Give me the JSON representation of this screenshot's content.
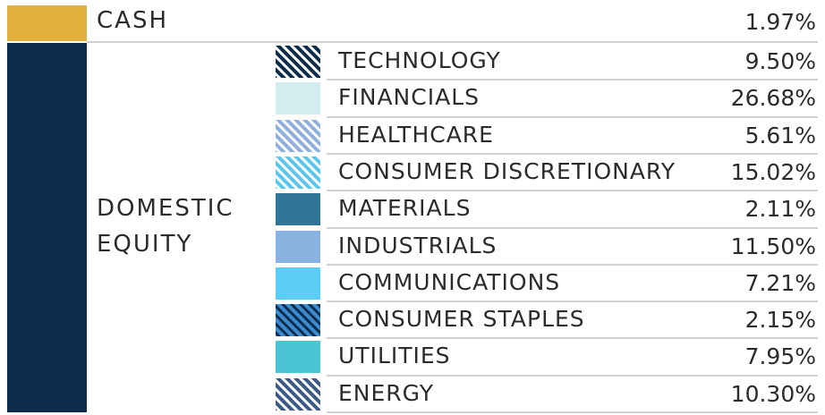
{
  "chart_data": {
    "type": "table",
    "categories": [
      {
        "name": "CASH",
        "value": "1.97%",
        "color": "#E0AF3C"
      },
      {
        "name_lines": [
          "DOMESTIC",
          "EQUITY"
        ],
        "color": "#0B2D4B",
        "sectors": [
          {
            "name": "TECHNOLOGY",
            "value": "9.50%",
            "swatch": {
              "pattern": "stripes",
              "fg": "#0B2D4B",
              "bg": "#ffffff"
            }
          },
          {
            "name": "FINANCIALS",
            "value": "26.68%",
            "swatch": {
              "pattern": "solid",
              "fg": "#D3ECEF"
            }
          },
          {
            "name": "HEALTHCARE",
            "value": "5.61%",
            "swatch": {
              "pattern": "stripes",
              "fg": "#8FB0DD",
              "bg": "#ffffff"
            }
          },
          {
            "name": "CONSUMER DISCRETIONARY",
            "value": "15.02%",
            "swatch": {
              "pattern": "stripes",
              "fg": "#5BC6EE",
              "bg": "#ffffff"
            }
          },
          {
            "name": "MATERIALS",
            "value": "2.11%",
            "swatch": {
              "pattern": "solid",
              "fg": "#2E7596"
            }
          },
          {
            "name": "INDUSTRIALS",
            "value": "11.50%",
            "swatch": {
              "pattern": "solid",
              "fg": "#8AB2E0"
            }
          },
          {
            "name": "COMMUNICATIONS",
            "value": "7.21%",
            "swatch": {
              "pattern": "solid",
              "fg": "#5CCDF7"
            }
          },
          {
            "name": "CONSUMER STAPLES",
            "value": "2.15%",
            "swatch": {
              "pattern": "stripes",
              "fg": "#3C8BD0",
              "bg": "#0B2D4B"
            }
          },
          {
            "name": "UTILITIES",
            "value": "7.95%",
            "swatch": {
              "pattern": "solid",
              "fg": "#4BC4D3"
            }
          },
          {
            "name": "ENERGY",
            "value": "10.30%",
            "swatch": {
              "pattern": "stripes",
              "fg": "#3C5A85",
              "bg": "#ffffff"
            }
          }
        ]
      }
    ]
  }
}
